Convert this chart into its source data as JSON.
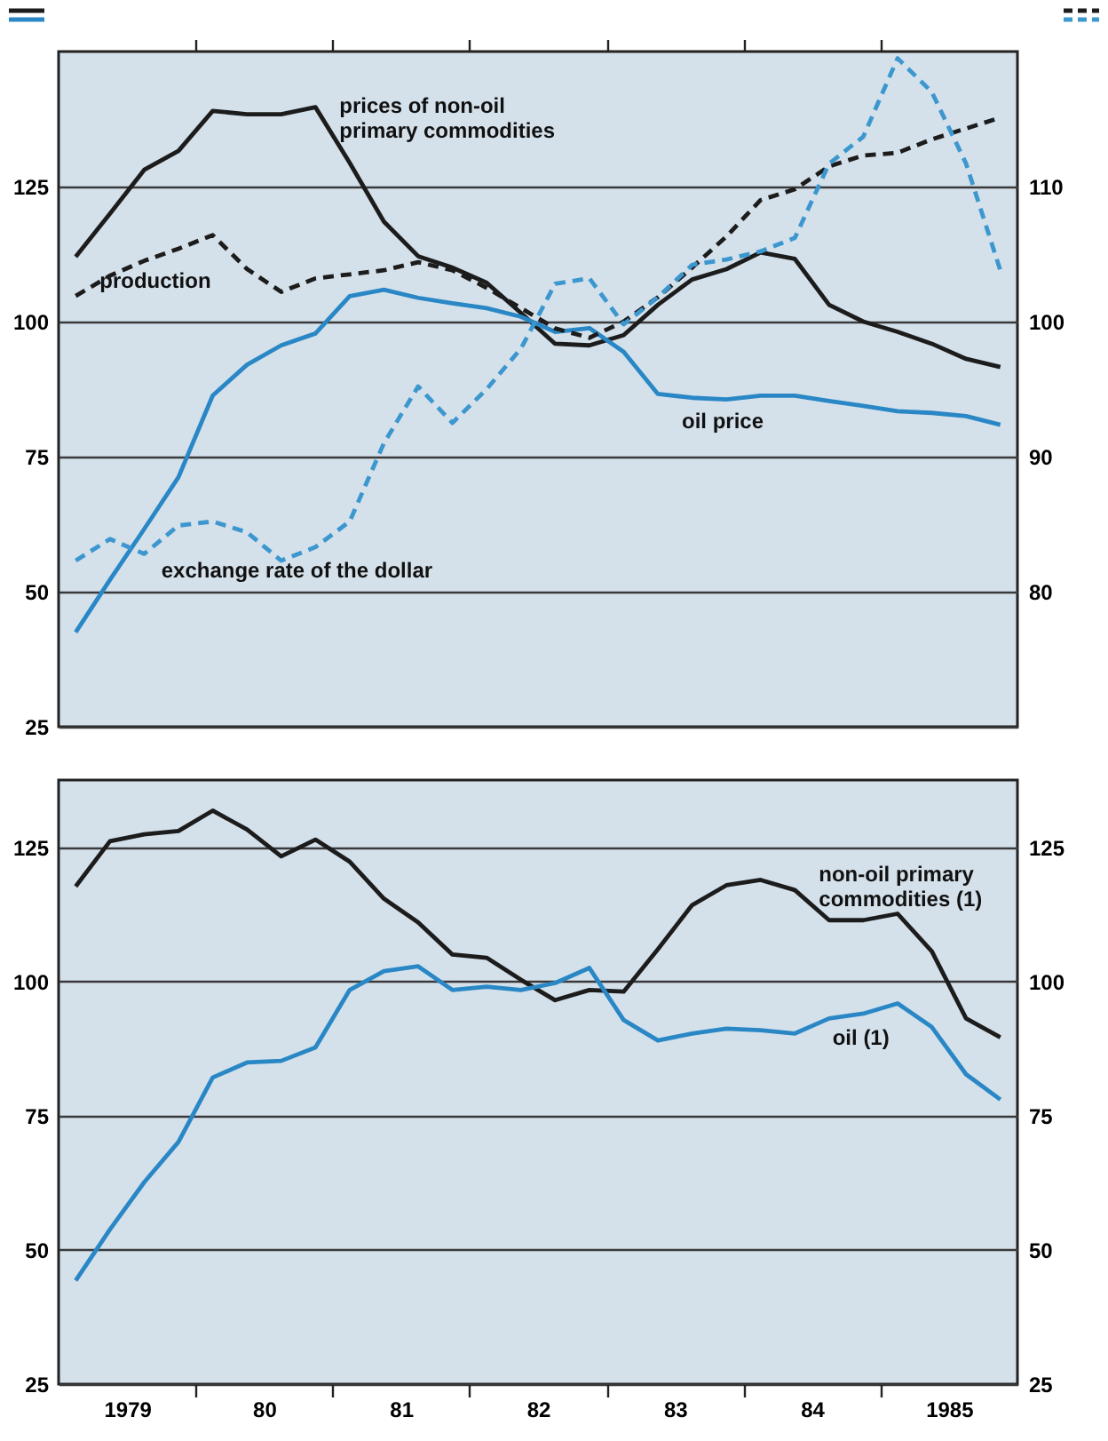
{
  "chart_data": [
    {
      "type": "line",
      "x": [
        1978.625,
        1978.875,
        1979.125,
        1979.375,
        1979.625,
        1979.875,
        1980.125,
        1980.375,
        1980.625,
        1980.875,
        1981.125,
        1981.375,
        1981.625,
        1981.875,
        1982.125,
        1982.375,
        1982.625,
        1982.875,
        1983.125,
        1983.375,
        1983.625,
        1983.875,
        1984.125,
        1984.375,
        1984.625,
        1984.875,
        1985.125,
        1985.375
      ],
      "xlim": [
        1978.5,
        1985.5
      ],
      "xticks": [
        {
          "value": 1979.5,
          "label": null
        },
        {
          "value": 1980.5,
          "label": null
        },
        {
          "value": 1981.5,
          "label": null
        },
        {
          "value": 1982.5,
          "label": null
        },
        {
          "value": 1983.5,
          "label": null
        },
        {
          "value": 1984.5,
          "label": null
        }
      ],
      "ylim": [
        25,
        150
      ],
      "yticks": [
        25,
        50,
        75,
        100,
        125
      ],
      "y2lim": [
        70,
        120
      ],
      "y2ticks": [
        80,
        90,
        100,
        110
      ],
      "grid": "y",
      "tick_labels": "y",
      "series": [
        {
          "name": "prices of non-oil primary commodities",
          "color": "#1c1c1c",
          "line_style": "solid",
          "values": [
            112,
            120,
            128.1,
            131.6,
            139,
            138.4,
            138.4,
            139.7,
            129.4,
            118.5,
            112.1,
            110,
            107.2,
            101.6,
            95.9,
            95.6,
            97.5,
            103.1,
            107.8,
            109.7,
            112.8,
            111.6,
            103.1,
            100,
            98.1,
            95.9,
            93.1,
            91.6
          ]
        },
        {
          "name": "production",
          "color": "#1c1c1c",
          "axis": "y2",
          "line_style": "dashed",
          "values": [
            101.9,
            103.4,
            104.5,
            105.4,
            106.4,
            103.9,
            102.2,
            103.2,
            103.5,
            103.8,
            104.4,
            103.8,
            102.5,
            101,
            99.5,
            98.8,
            100,
            101.8,
            104,
            106.3,
            109,
            109.8,
            111.5,
            112.3,
            112.5,
            113.5,
            114.3,
            115.1
          ]
        },
        {
          "name": "oil price",
          "color": "#2a87c5",
          "line_style": "solid",
          "values": [
            42.5,
            52.2,
            61.6,
            71.2,
            86.3,
            92,
            95.6,
            97.8,
            104.7,
            105.9,
            104.4,
            103.4,
            102.5,
            100.9,
            98.1,
            98.8,
            94.4,
            86.6,
            85.9,
            85.6,
            86.3,
            86.3,
            85.3,
            84.4,
            83.4,
            83.1,
            82.5,
            80.9
          ]
        },
        {
          "name": "exchange rate of the dollar",
          "color": "#3d97cf",
          "axis": "y2",
          "line_style": "dashed",
          "values": [
            82.3,
            83.9,
            82.8,
            84.9,
            85.2,
            84.4,
            82.3,
            83.3,
            85.2,
            91,
            95.2,
            92.5,
            95,
            98,
            102.8,
            103.2,
            99.8,
            101.8,
            104.2,
            104.6,
            105.2,
            106.2,
            111.7,
            113.7,
            119.5,
            117,
            111.7,
            103.8
          ]
        }
      ]
    },
    {
      "type": "line",
      "x": [
        1978.625,
        1978.875,
        1979.125,
        1979.375,
        1979.625,
        1979.875,
        1980.125,
        1980.375,
        1980.625,
        1980.875,
        1981.125,
        1981.375,
        1981.625,
        1981.875,
        1982.125,
        1982.375,
        1982.625,
        1982.875,
        1983.125,
        1983.375,
        1983.625,
        1983.875,
        1984.125,
        1984.375,
        1984.625,
        1984.875,
        1985.125,
        1985.375
      ],
      "xlim": [
        1978.5,
        1985.5
      ],
      "xticks": [
        1979,
        {
          "value": 1979.5,
          "label": null
        },
        {
          "value": 1980,
          "label": "80"
        },
        {
          "value": 1980.5,
          "label": null
        },
        {
          "value": 1981,
          "label": "81"
        },
        {
          "value": 1981.5,
          "label": null
        },
        {
          "value": 1982,
          "label": "82"
        },
        {
          "value": 1982.5,
          "label": null
        },
        {
          "value": 1983,
          "label": "83"
        },
        {
          "value": 1983.5,
          "label": null
        },
        {
          "value": 1984,
          "label": "84"
        },
        {
          "value": 1984.5,
          "label": null
        },
        1985
      ],
      "ylim": [
        25,
        137.5
      ],
      "yticks": [
        25,
        50,
        75,
        100,
        125
      ],
      "y2lim": [
        25,
        137.5
      ],
      "y2ticks": [
        25,
        50,
        75,
        100,
        125
      ],
      "grid": "y",
      "series": [
        {
          "name": "non-oil primary commodities (1)",
          "color": "#1c1c1c",
          "line_style": "solid",
          "values": [
            117.7,
            126.1,
            127.4,
            128,
            131.8,
            128.3,
            123.3,
            126.4,
            122.3,
            115.4,
            111,
            105,
            104.4,
            100.3,
            96.5,
            98.4,
            98.1,
            106,
            114.2,
            117.9,
            118.9,
            117,
            111.4,
            111.4,
            112.6,
            105.6,
            93.1,
            89.6
          ]
        },
        {
          "name": "oil (1)",
          "color": "#2a87c5",
          "line_style": "solid",
          "values": [
            44.3,
            53.8,
            62.6,
            70.1,
            82.1,
            84.9,
            85.2,
            87.7,
            98.4,
            101.9,
            102.8,
            98.4,
            99,
            98.4,
            99.7,
            102.5,
            92.8,
            89,
            90.3,
            91.2,
            90.9,
            90.3,
            93.1,
            94,
            95.9,
            91.5,
            82.7,
            78
          ]
        }
      ]
    }
  ]
}
